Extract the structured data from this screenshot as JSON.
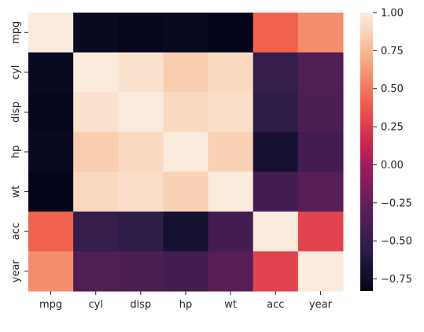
{
  "chart_data": {
    "type": "heatmap",
    "title": "",
    "xlabel": "",
    "ylabel": "",
    "x_labels": [
      "mpg",
      "cyl",
      "disp",
      "hp",
      "wt",
      "acc",
      "year"
    ],
    "y_labels": [
      "mpg",
      "cyl",
      "disp",
      "hp",
      "wt",
      "acc",
      "year"
    ],
    "values": [
      [
        1.0,
        -0.78,
        -0.81,
        -0.78,
        -0.83,
        0.42,
        0.58
      ],
      [
        -0.78,
        1.0,
        0.95,
        0.84,
        0.9,
        -0.5,
        -0.35
      ],
      [
        -0.81,
        0.95,
        1.0,
        0.9,
        0.93,
        -0.54,
        -0.37
      ],
      [
        -0.78,
        0.84,
        0.9,
        1.0,
        0.86,
        -0.69,
        -0.42
      ],
      [
        -0.83,
        0.9,
        0.93,
        0.86,
        1.0,
        -0.42,
        -0.31
      ],
      [
        0.42,
        -0.5,
        -0.54,
        -0.69,
        -0.42,
        1.0,
        0.29
      ],
      [
        0.58,
        -0.35,
        -0.37,
        -0.42,
        -0.31,
        0.29,
        1.0
      ]
    ],
    "vmin": -0.83,
    "vmax": 1.0,
    "colormap": "rocket",
    "colorbar_ticks": [
      {
        "value": 1.0,
        "label": "1.00"
      },
      {
        "value": 0.75,
        "label": "0.75"
      },
      {
        "value": 0.5,
        "label": "0.50"
      },
      {
        "value": 0.25,
        "label": "0.25"
      },
      {
        "value": 0.0,
        "label": "0.00"
      },
      {
        "value": -0.25,
        "label": "−0.25"
      },
      {
        "value": -0.5,
        "label": "−0.50"
      },
      {
        "value": -0.75,
        "label": "−0.75"
      }
    ],
    "grid": false,
    "legend": "colorbar-right"
  }
}
